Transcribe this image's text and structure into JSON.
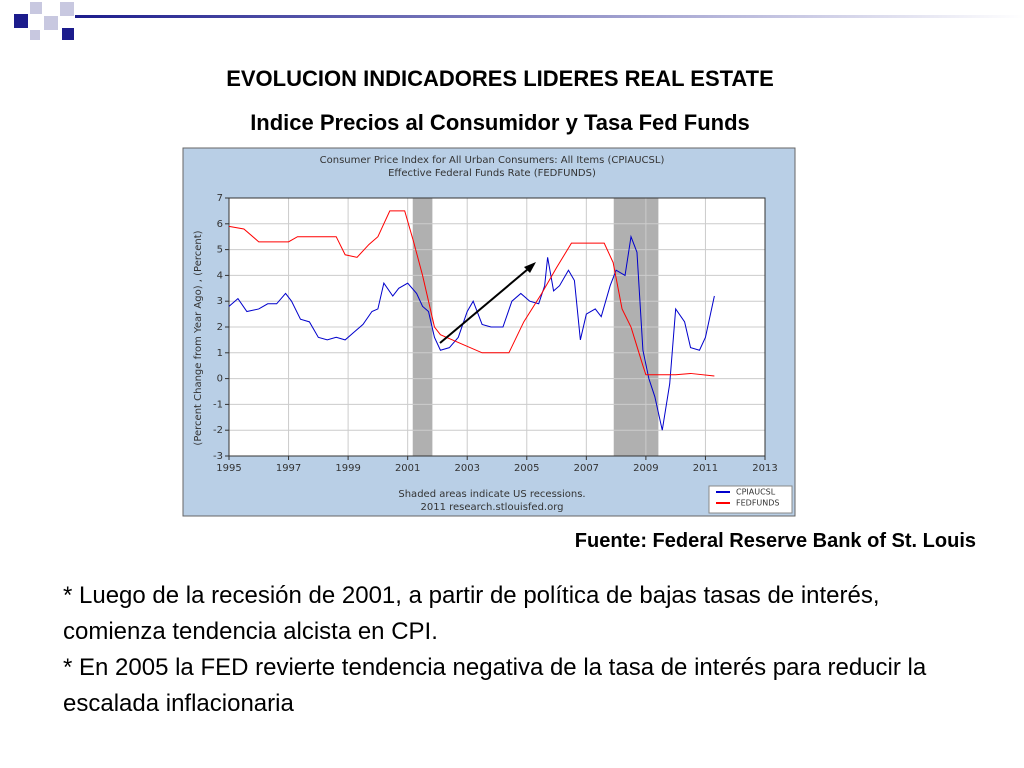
{
  "slide": {
    "title": "EVOLUCION INDICADORES LIDERES REAL ESTATE",
    "subtitle": "Indice Precios al Consumidor y Tasa Fed Funds",
    "source": "Fuente: Federal Reserve Bank of St. Louis",
    "bullets": [
      "* Luego de la recesión de 2001, a partir de política de bajas tasas de interés, comienza tendencia alcista en CPI.",
      "* En 2005 la FED revierte tendencia negativa de la tasa de interés para reducir la escalada inflacionaria"
    ]
  },
  "chart_data": {
    "type": "line",
    "title": [
      "Consumer Price Index for All Urban Consumers: All Items (CPIAUCSL)",
      "Effective Federal Funds Rate (FEDFUNDS)"
    ],
    "y_label": "(Percent Change from Year Ago) , (Percent)",
    "notes": [
      "Shaded areas indicate US recessions.",
      "2011 research.stlouisfed.org"
    ],
    "xlim": [
      1995,
      2013
    ],
    "xticks": [
      1995,
      1997,
      1999,
      2001,
      2003,
      2005,
      2007,
      2009,
      2011,
      2013
    ],
    "ylim": [
      -3,
      7
    ],
    "yticks": [
      -3,
      -2,
      -1,
      0,
      1,
      2,
      3,
      4,
      5,
      6,
      7
    ],
    "grid": true,
    "recessions": [
      [
        2001.17,
        2001.83
      ],
      [
        2007.92,
        2009.42
      ]
    ],
    "series": [
      {
        "name": "CPIAUCSL",
        "color": "#0000cc",
        "x": [
          1995.0,
          1995.3,
          1995.6,
          1996.0,
          1996.3,
          1996.6,
          1996.9,
          1997.1,
          1997.4,
          1997.7,
          1998.0,
          1998.3,
          1998.6,
          1998.9,
          1999.2,
          1999.5,
          1999.8,
          2000.0,
          2000.2,
          2000.5,
          2000.7,
          2001.0,
          2001.3,
          2001.5,
          2001.7,
          2001.9,
          2002.1,
          2002.4,
          2002.7,
          2003.0,
          2003.2,
          2003.5,
          2003.8,
          2004.2,
          2004.5,
          2004.8,
          2005.1,
          2005.4,
          2005.6,
          2005.7,
          2005.9,
          2006.1,
          2006.4,
          2006.6,
          2006.8,
          2007.0,
          2007.3,
          2007.5,
          2007.8,
          2008.0,
          2008.3,
          2008.5,
          2008.7,
          2008.9,
          2009.1,
          2009.3,
          2009.55,
          2009.8,
          2010.0,
          2010.3,
          2010.5,
          2010.8,
          2011.0,
          2011.3
        ],
        "values": [
          2.8,
          3.1,
          2.6,
          2.7,
          2.9,
          2.9,
          3.3,
          3.0,
          2.3,
          2.2,
          1.6,
          1.5,
          1.6,
          1.5,
          1.8,
          2.1,
          2.6,
          2.7,
          3.7,
          3.2,
          3.5,
          3.7,
          3.3,
          2.8,
          2.6,
          1.6,
          1.1,
          1.2,
          1.6,
          2.6,
          3.0,
          2.1,
          2.0,
          2.0,
          3.0,
          3.3,
          3.0,
          2.9,
          3.6,
          4.7,
          3.4,
          3.6,
          4.2,
          3.8,
          1.5,
          2.5,
          2.7,
          2.4,
          3.6,
          4.2,
          4.0,
          5.5,
          4.9,
          1.1,
          0.0,
          -0.7,
          -2.0,
          -0.2,
          2.7,
          2.2,
          1.2,
          1.1,
          1.6,
          3.2
        ]
      },
      {
        "name": "FEDFUNDS",
        "color": "#ff0000",
        "x": [
          1995.0,
          1995.5,
          1996.0,
          1996.5,
          1997.0,
          1997.3,
          1998.0,
          1998.6,
          1998.9,
          1999.3,
          1999.7,
          2000.0,
          2000.4,
          2000.9,
          2001.2,
          2001.5,
          2001.9,
          2002.1,
          2002.9,
          2003.5,
          2004.4,
          2004.9,
          2005.5,
          2006.0,
          2006.5,
          2007.6,
          2007.9,
          2008.2,
          2008.5,
          2008.9,
          2009.0,
          2010.0,
          2010.5,
          2011.3
        ],
        "values": [
          5.9,
          5.8,
          5.3,
          5.3,
          5.3,
          5.5,
          5.5,
          5.5,
          4.8,
          4.7,
          5.2,
          5.5,
          6.5,
          6.5,
          5.3,
          4.0,
          2.0,
          1.7,
          1.3,
          1.0,
          1.0,
          2.2,
          3.3,
          4.3,
          5.25,
          5.25,
          4.5,
          2.7,
          2.0,
          0.5,
          0.15,
          0.15,
          0.2,
          0.1
        ]
      }
    ]
  }
}
